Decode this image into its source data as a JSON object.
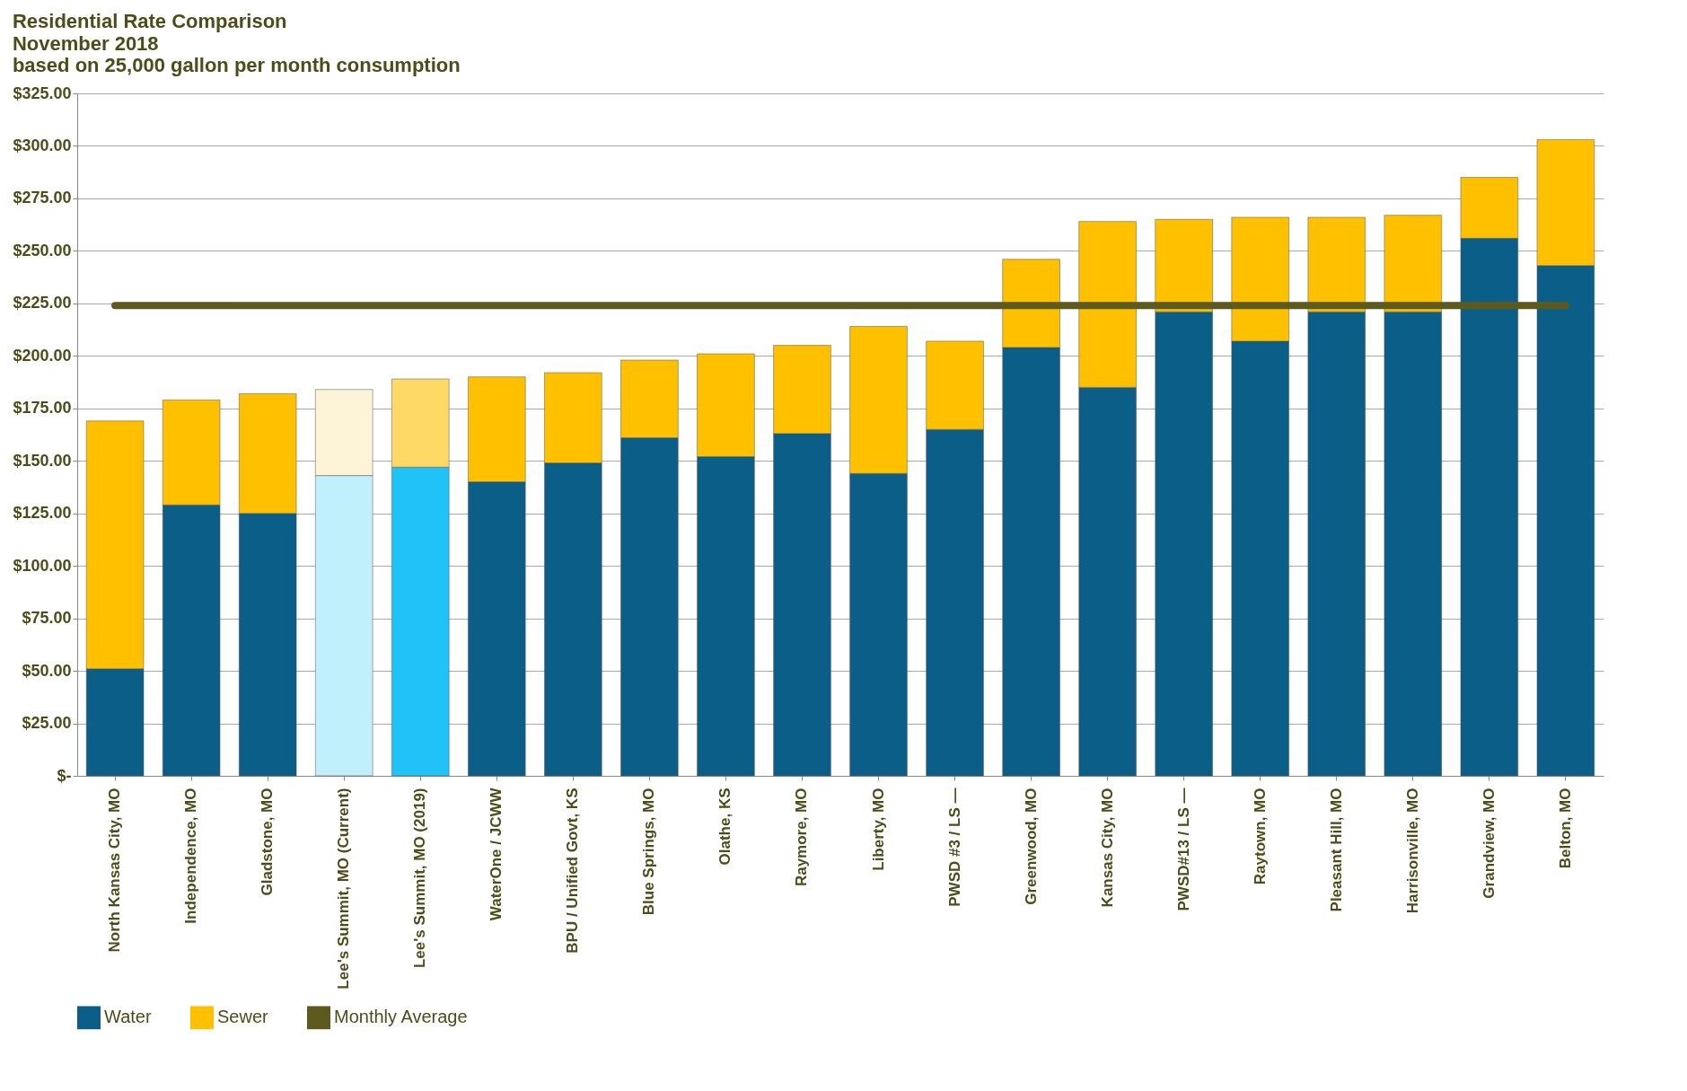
{
  "chart_data": {
    "type": "bar",
    "title": "Residential Rate Comparison",
    "subtitle": "November 2018",
    "annotations": [
      "based on 25,000 gallon per month consumption"
    ],
    "categories": [
      "North Kansas City, MO",
      "Independence, MO",
      "Gladstone, MO",
      "Lee's Summit, MO (Current)",
      "Lee's Summit, MO (2019)",
      "WaterOne / JCWW",
      "BPU / Unified Govt, KS",
      "Blue Springs, MO",
      "Olathe, KS",
      "Raymore, MO",
      "Liberty, MO",
      "PWSD #3 / LS —",
      "Greenwood, MO",
      "Kansas City, MO",
      "PWSD#13 / LS —",
      "Raytown, MO",
      "Pleasant Hill, MO",
      "Harrisonville, MO",
      "Grandview, MO",
      "Belton, MO"
    ],
    "stacked": true,
    "series": [
      {
        "name": "Water",
        "color": "#0b5e87",
        "colors": [
          "#0b5e87",
          "#0b5e87",
          "#0b5e87",
          "#bff0fb",
          "#1fc3f7",
          "#0b5e87",
          "#0b5e87",
          "#0b5e87",
          "#0b5e87",
          "#0b5e87",
          "#0b5e87",
          "#0b5e87",
          "#0b5e87",
          "#0b5e87",
          "#0b5e87",
          "#0b5e87",
          "#0b5e87",
          "#0b5e87",
          "#0b5e87",
          "#0b5e87"
        ],
        "values": [
          51,
          129,
          125,
          143,
          147,
          140,
          149,
          161,
          152,
          163,
          144,
          165,
          204,
          185,
          221,
          207,
          221,
          221,
          256,
          243
        ]
      },
      {
        "name": "Sewer",
        "color": "#ffc000",
        "colors": [
          "#ffc000",
          "#ffc000",
          "#ffc000",
          "#fdf3d6",
          "#ffd966",
          "#ffc000",
          "#ffc000",
          "#ffc000",
          "#ffc000",
          "#ffc000",
          "#ffc000",
          "#ffc000",
          "#ffc000",
          "#ffc000",
          "#ffc000",
          "#ffc000",
          "#ffc000",
          "#ffc000",
          "#ffc000",
          "#ffc000"
        ],
        "values": [
          118,
          50,
          57,
          41,
          42,
          50,
          43,
          37,
          49,
          42,
          70,
          42,
          42,
          79,
          44,
          59,
          45,
          46,
          29,
          60
        ]
      },
      {
        "name": "Monthly Average",
        "type": "line",
        "color": "#5c5a1e",
        "values": [
          224,
          224,
          224,
          224,
          224,
          224,
          224,
          224,
          224,
          224,
          224,
          224,
          224,
          224,
          224,
          224,
          224,
          224,
          224,
          224
        ]
      }
    ],
    "ylim": [
      0,
      325
    ],
    "yticks": [
      {
        "value": 0,
        "label": "$-"
      },
      {
        "value": 25,
        "label": "$25.00"
      },
      {
        "value": 50,
        "label": "$50.00"
      },
      {
        "value": 75,
        "label": "$75.00"
      },
      {
        "value": 100,
        "label": "$100.00"
      },
      {
        "value": 125,
        "label": "$125.00"
      },
      {
        "value": 150,
        "label": "$150.00"
      },
      {
        "value": 175,
        "label": "$175.00"
      },
      {
        "value": 200,
        "label": "$200.00"
      },
      {
        "value": 225,
        "label": "$225.00"
      },
      {
        "value": 250,
        "label": "$250.00"
      },
      {
        "value": 275,
        "label": "$275.00"
      },
      {
        "value": 300,
        "label": "$300.00"
      },
      {
        "value": 325,
        "label": "$325.00"
      }
    ],
    "grid": "y",
    "legend": "bottom"
  }
}
